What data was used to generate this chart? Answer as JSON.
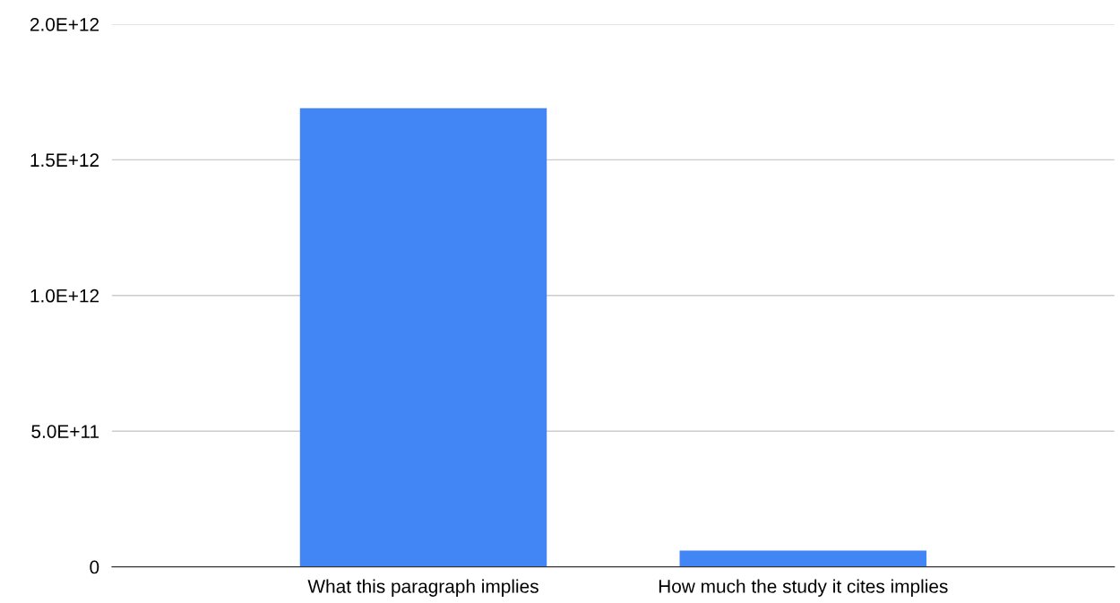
{
  "chart_data": {
    "type": "bar",
    "categories": [
      "What this paragraph implies",
      "How much the study it cites implies"
    ],
    "values": [
      1690000000000.0,
      60000000000.0
    ],
    "color": "#4285f4",
    "ylim": [
      0,
      2000000000000.0
    ],
    "yticks": [
      {
        "value": 0,
        "label": "0"
      },
      {
        "value": 500000000000.0,
        "label": "5.0E+11"
      },
      {
        "value": 1000000000000.0,
        "label": "1.0E+12"
      },
      {
        "value": 1500000000000.0,
        "label": "1.5E+12"
      },
      {
        "value": 2000000000000.0,
        "label": "2.0E+12"
      }
    ],
    "grid": "y"
  }
}
